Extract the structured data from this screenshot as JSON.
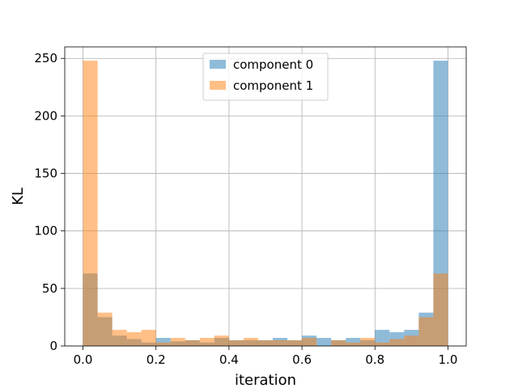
{
  "chart_data": {
    "type": "bar",
    "title": "",
    "xlabel": "iteration",
    "ylabel": "KL",
    "xlim": [
      -0.05,
      1.05
    ],
    "ylim": [
      0,
      260
    ],
    "xticks": [
      0.0,
      0.2,
      0.4,
      0.6,
      0.8,
      1.0
    ],
    "xtick_labels": [
      "0.0",
      "0.2",
      "0.4",
      "0.6",
      "0.8",
      "1.0"
    ],
    "yticks": [
      0,
      50,
      100,
      150,
      200,
      250
    ],
    "ytick_labels": [
      "0",
      "50",
      "100",
      "150",
      "200",
      "250"
    ],
    "grid": true,
    "legend_position": "top-center",
    "bin_edges": [
      0.0,
      0.04,
      0.08,
      0.12,
      0.16,
      0.2,
      0.24,
      0.28,
      0.32,
      0.36,
      0.4,
      0.44,
      0.48,
      0.52,
      0.56,
      0.6,
      0.64,
      0.68,
      0.72,
      0.76,
      0.8,
      0.84,
      0.88,
      0.92,
      0.96,
      1.0
    ],
    "series": [
      {
        "name": "component 0",
        "color": "#1f77b4",
        "alpha": 0.5,
        "values": [
          63,
          25,
          9,
          6,
          3,
          7,
          4,
          5,
          3,
          7,
          5,
          5,
          5,
          7,
          5,
          9,
          7,
          5,
          7,
          5,
          14,
          12,
          14,
          29,
          248
        ]
      },
      {
        "name": "component 1",
        "color": "#ff7f0e",
        "alpha": 0.5,
        "values": [
          248,
          29,
          14,
          12,
          14,
          3,
          7,
          5,
          7,
          9,
          5,
          7,
          5,
          5,
          5,
          7,
          0,
          5,
          3,
          7,
          3,
          6,
          9,
          25,
          63
        ]
      }
    ]
  }
}
